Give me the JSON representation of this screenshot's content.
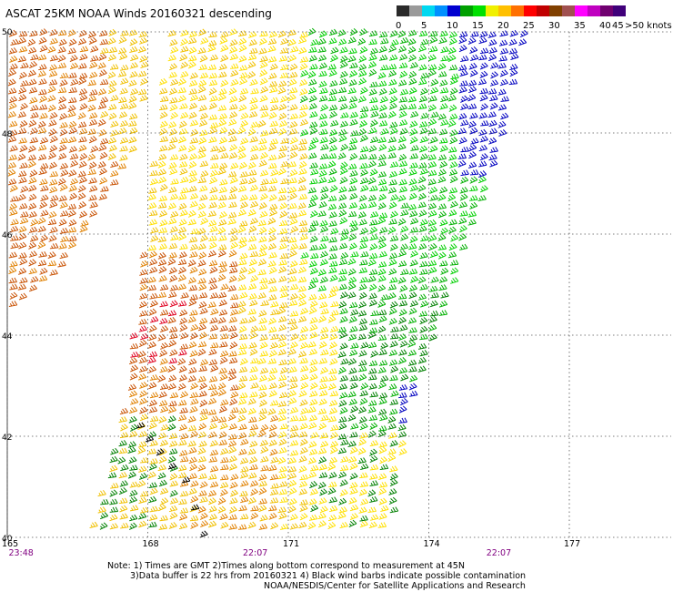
{
  "title": "ASCAT 25KM NOAA Winds 20160321 descending",
  "legend": {
    "colors": [
      "#2a2a2a",
      "#9a9a9a",
      "#00d8f0",
      "#0090ff",
      "#0000d0",
      "#00a000",
      "#00e000",
      "#f0f000",
      "#ffc000",
      "#ff7000",
      "#ff0000",
      "#c00000",
      "#804000",
      "#a05050",
      "#ff00ff",
      "#c000c0",
      "#700070",
      "#40007a"
    ],
    "labels": [
      {
        "text": "0",
        "index": 0
      },
      {
        "text": "5",
        "index": 2
      },
      {
        "text": "10",
        "index": 4
      },
      {
        "text": "15",
        "index": 6
      },
      {
        "text": "20",
        "index": 8
      },
      {
        "text": "25",
        "index": 10
      },
      {
        "text": "30",
        "index": 12
      },
      {
        "text": "35",
        "index": 14
      },
      {
        "text": "40",
        "index": 16
      },
      {
        "text": "45",
        "index": 17
      },
      {
        "text": ">50 knots",
        "index": 18
      }
    ]
  },
  "map": {
    "lat_ticks": [
      {
        "label": "50",
        "value": 50
      },
      {
        "label": "48",
        "value": 48
      },
      {
        "label": "46",
        "value": 46
      },
      {
        "label": "44",
        "value": 44
      },
      {
        "label": "42",
        "value": 42
      },
      {
        "label": "40",
        "value": 40
      }
    ],
    "lon_ticks": [
      {
        "label": "165",
        "value": 165
      },
      {
        "label": "168",
        "value": 168
      },
      {
        "label": "171",
        "value": 171
      },
      {
        "label": "174",
        "value": 174
      },
      {
        "label": "177",
        "value": 177
      }
    ],
    "time_labels": [
      {
        "label": "23:48",
        "lon": 165.3
      },
      {
        "label": "22:07",
        "lon": 170.3
      },
      {
        "label": "22:07",
        "lon": 175.5
      }
    ],
    "time_color": "#800080",
    "lat_range": [
      40,
      50
    ],
    "lon_range": [
      165,
      179
    ]
  },
  "notes": {
    "line1": "Note: 1) Times are GMT 2)Times along bottom correspond to measurement at 45N",
    "line2": "3)Data buffer is 22 hrs from 20160321 4) Black wind barbs indicate possible contamination",
    "line3": "NOAA/NESDIS/Center for Satellite Applications and Research"
  }
}
